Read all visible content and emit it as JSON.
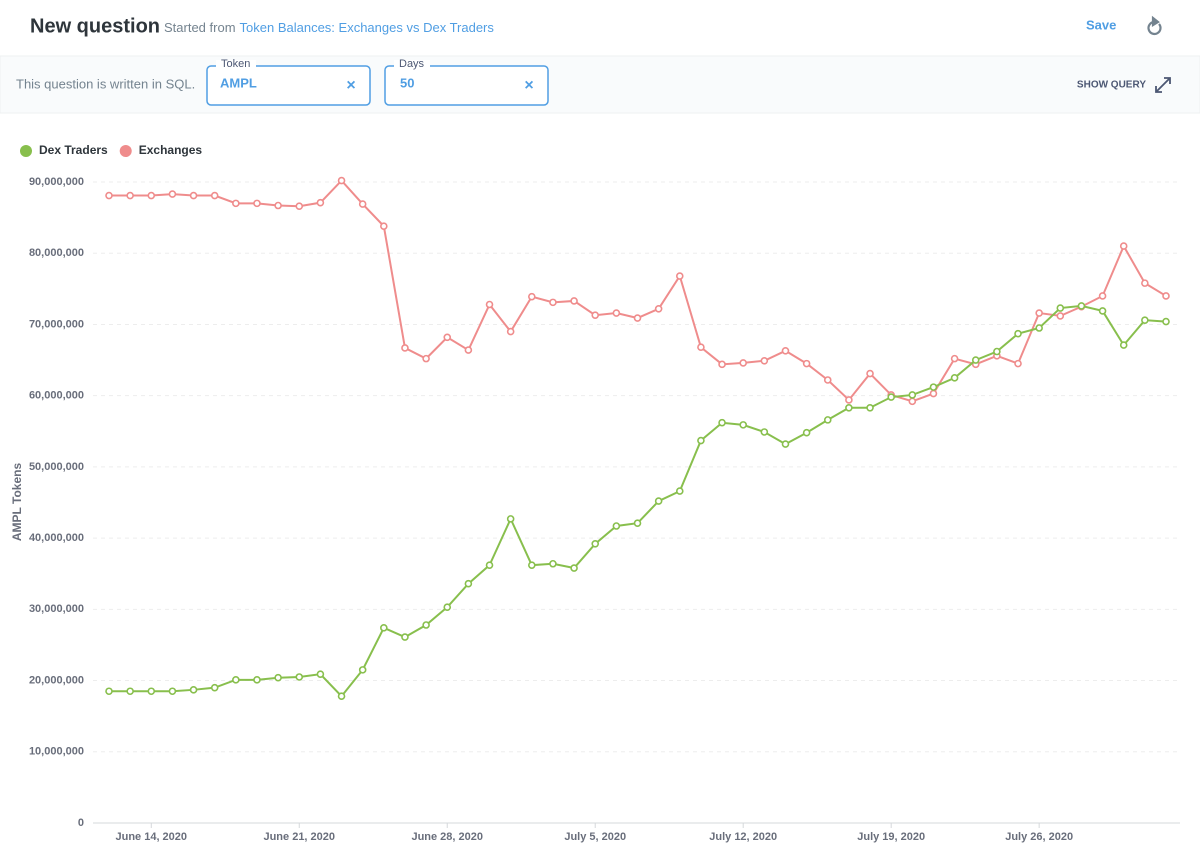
{
  "header": {
    "title": "New question",
    "started_from": "Started from",
    "source_link": "Token Balances: Exchanges vs Dex Traders",
    "save": "Save"
  },
  "toolbar": {
    "sql_note": "This question is written in SQL.",
    "show_query": "SHOW QUERY",
    "filters": [
      {
        "label": "Token",
        "value": "AMPL",
        "clear": "×"
      },
      {
        "label": "Days",
        "value": "50",
        "clear": "×"
      }
    ]
  },
  "chart_data": {
    "type": "line",
    "y_label": "AMPL Tokens",
    "x": [
      "2020-06-12",
      "2020-06-13",
      "2020-06-14",
      "2020-06-15",
      "2020-06-16",
      "2020-06-17",
      "2020-06-18",
      "2020-06-19",
      "2020-06-20",
      "2020-06-21",
      "2020-06-22",
      "2020-06-23",
      "2020-06-24",
      "2020-06-25",
      "2020-06-26",
      "2020-06-27",
      "2020-06-28",
      "2020-06-29",
      "2020-06-30",
      "2020-07-01",
      "2020-07-02",
      "2020-07-03",
      "2020-07-04",
      "2020-07-05",
      "2020-07-06",
      "2020-07-07",
      "2020-07-08",
      "2020-07-09",
      "2020-07-10",
      "2020-07-11",
      "2020-07-12",
      "2020-07-13",
      "2020-07-14",
      "2020-07-15",
      "2020-07-16",
      "2020-07-17",
      "2020-07-18",
      "2020-07-19",
      "2020-07-20",
      "2020-07-21",
      "2020-07-22",
      "2020-07-23",
      "2020-07-24",
      "2020-07-25",
      "2020-07-26",
      "2020-07-27",
      "2020-07-28",
      "2020-07-29",
      "2020-07-30",
      "2020-07-31",
      "2020-08-01"
    ],
    "series": [
      {
        "name": "Dex Traders",
        "color": "#88bf4d",
        "values": [
          18500000,
          18500000,
          18500000,
          18500000,
          18700000,
          19000000,
          20100000,
          20100000,
          20400000,
          20500000,
          20900000,
          17800000,
          21500000,
          27400000,
          26100000,
          27800000,
          30300000,
          33600000,
          36200000,
          42700000,
          36200000,
          36400000,
          35800000,
          39200000,
          41700000,
          42100000,
          45200000,
          46600000,
          53700000,
          56200000,
          55900000,
          54900000,
          53200000,
          54800000,
          56600000,
          58300000,
          58300000,
          59800000,
          60100000,
          61200000,
          62500000,
          65000000,
          66200000,
          68700000,
          69500000,
          72300000,
          72600000,
          71900000,
          67100000,
          70600000,
          70400000
        ]
      },
      {
        "name": "Exchanges",
        "color": "#ef8c8c",
        "values": [
          88100000,
          88100000,
          88100000,
          88300000,
          88100000,
          88100000,
          87000000,
          87000000,
          86700000,
          86600000,
          87100000,
          90200000,
          86900000,
          83800000,
          66700000,
          65200000,
          68200000,
          66400000,
          72800000,
          69000000,
          73900000,
          73100000,
          73300000,
          71300000,
          71600000,
          70900000,
          72200000,
          76800000,
          66800000,
          64400000,
          64600000,
          64900000,
          66300000,
          64500000,
          62200000,
          59400000,
          63100000,
          60100000,
          59200000,
          60300000,
          65200000,
          64400000,
          65600000,
          64500000,
          71600000,
          71200000,
          72500000,
          74000000,
          81000000,
          75800000,
          74000000
        ]
      }
    ],
    "xlim": [
      "2020-06-12",
      "2020-08-01"
    ],
    "xticks": [
      {
        "value": "2020-06-14",
        "label": "June 14, 2020"
      },
      {
        "value": "2020-06-21",
        "label": "June 21, 2020"
      },
      {
        "value": "2020-06-28",
        "label": "June 28, 2020"
      },
      {
        "value": "2020-07-05",
        "label": "July 5, 2020"
      },
      {
        "value": "2020-07-12",
        "label": "July 12, 2020"
      },
      {
        "value": "2020-07-19",
        "label": "July 19, 2020"
      },
      {
        "value": "2020-07-26",
        "label": "July 26, 2020"
      }
    ],
    "ylim": [
      0,
      90000000
    ],
    "yticks": [
      0,
      {
        "value": 10000000,
        "label": "10,000,000"
      },
      {
        "value": 20000000,
        "label": "20,000,000"
      },
      {
        "value": 30000000,
        "label": "30,000,000"
      },
      {
        "value": 40000000,
        "label": "40,000,000"
      },
      {
        "value": 50000000,
        "label": "50,000,000"
      },
      {
        "value": 60000000,
        "label": "60,000,000"
      },
      {
        "value": 70000000,
        "label": "70,000,000"
      },
      {
        "value": 80000000,
        "label": "80,000,000"
      },
      {
        "value": 90000000,
        "label": "90,000,000"
      }
    ],
    "grid": true,
    "legend": "top-left"
  }
}
